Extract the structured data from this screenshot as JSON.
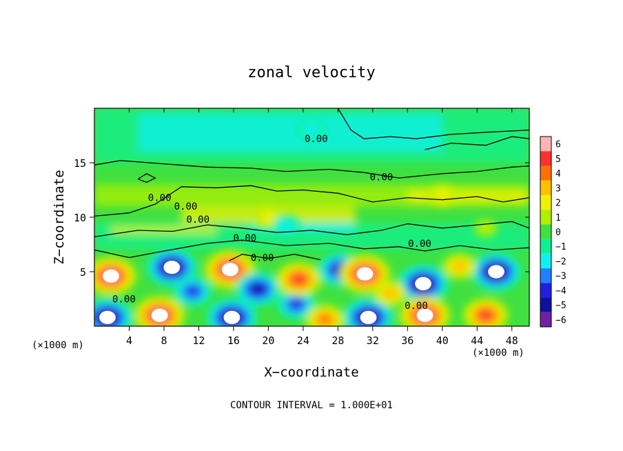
{
  "chart_data": {
    "type": "heatmap",
    "title": "zonal velocity",
    "xlabel": "X−coordinate",
    "ylabel": "Z−coordinate",
    "x_unit_left": "(×1000 m)",
    "x_unit_right": "(×1000 m)",
    "xlim": [
      0,
      50
    ],
    "ylim": [
      0,
      20
    ],
    "x_ticks": [
      4,
      8,
      12,
      16,
      20,
      24,
      28,
      32,
      36,
      40,
      44,
      48
    ],
    "y_ticks": [
      5,
      10,
      15
    ],
    "colorbar": {
      "ticks": [
        6,
        5,
        4,
        3,
        2,
        1,
        0,
        -1,
        -2,
        -3,
        -4,
        -5,
        -6
      ],
      "tick_labels": [
        "6",
        "5",
        "4",
        "3",
        "2",
        "1",
        "0",
        "−1",
        "−2",
        "−3",
        "−4",
        "−5",
        "−6"
      ],
      "range": [
        -6,
        6
      ],
      "colors": [
        "#ffb4b4",
        "#ff3030",
        "#ff7000",
        "#ffc000",
        "#f0f000",
        "#b0f000",
        "#40e040",
        "#10f090",
        "#10f0f0",
        "#2080ff",
        "#2020e0",
        "#1010a0",
        "#7020a0"
      ]
    },
    "contour_labels": [
      {
        "text": "0.00",
        "x": 25.5,
        "y": 17.2
      },
      {
        "text": "0.00",
        "x": 33.0,
        "y": 13.7
      },
      {
        "text": "0.00",
        "x": 7.5,
        "y": 11.8
      },
      {
        "text": "0.00",
        "x": 10.5,
        "y": 11.0
      },
      {
        "text": "0.00",
        "x": 11.9,
        "y": 9.8
      },
      {
        "text": "0.00",
        "x": 17.3,
        "y": 8.1
      },
      {
        "text": "0.00",
        "x": 37.4,
        "y": 7.6
      },
      {
        "text": "0.00",
        "x": 19.3,
        "y": 6.3
      },
      {
        "text": "0.00",
        "x": 3.4,
        "y": 2.5
      },
      {
        "text": "0.00",
        "x": 37.0,
        "y": 1.9
      }
    ],
    "features": [
      {
        "x": 1.9,
        "z": 4.6,
        "value": 6
      },
      {
        "x": 8.9,
        "z": 5.4,
        "value": -6
      },
      {
        "x": 7.5,
        "z": 1.0,
        "value": 6
      },
      {
        "x": 1.5,
        "z": 0.8,
        "value": -6
      },
      {
        "x": 15.6,
        "z": 5.2,
        "value": 6
      },
      {
        "x": 15.8,
        "z": 0.8,
        "value": -6
      },
      {
        "x": 18.8,
        "z": 3.4,
        "value": -5
      },
      {
        "x": 23.2,
        "z": 2.0,
        "value": -4
      },
      {
        "x": 23.5,
        "z": 4.3,
        "value": 5
      },
      {
        "x": 28.3,
        "z": 5.2,
        "value": -5
      },
      {
        "x": 31.1,
        "z": 4.8,
        "value": 6
      },
      {
        "x": 31.5,
        "z": 0.8,
        "value": -6
      },
      {
        "x": 37.8,
        "z": 3.9,
        "value": -6
      },
      {
        "x": 38.0,
        "z": 1.0,
        "value": 6
      },
      {
        "x": 46.2,
        "z": 5.0,
        "value": -6
      },
      {
        "x": 45.0,
        "z": 1.0,
        "value": 5
      },
      {
        "x": 11.3,
        "z": 3.2,
        "value": -4
      },
      {
        "x": 34.0,
        "z": 3.0,
        "value": 3
      },
      {
        "x": 26.5,
        "z": 0.6,
        "value": 4
      },
      {
        "x": 42.0,
        "z": 5.5,
        "value": 3
      },
      {
        "x": 20.0,
        "z": 10.0,
        "value": 2
      },
      {
        "x": 40.0,
        "z": 12.0,
        "value": 2
      },
      {
        "x": 25.0,
        "z": 18.0,
        "value": -2
      },
      {
        "x": 22.0,
        "z": 9.2,
        "value": -2
      },
      {
        "x": 45.0,
        "z": 9.0,
        "value": 1
      }
    ],
    "footnote": "CONTOUR INTERVAL = 1.000E+01",
    "grid": false,
    "legend": "colorbar-right"
  }
}
